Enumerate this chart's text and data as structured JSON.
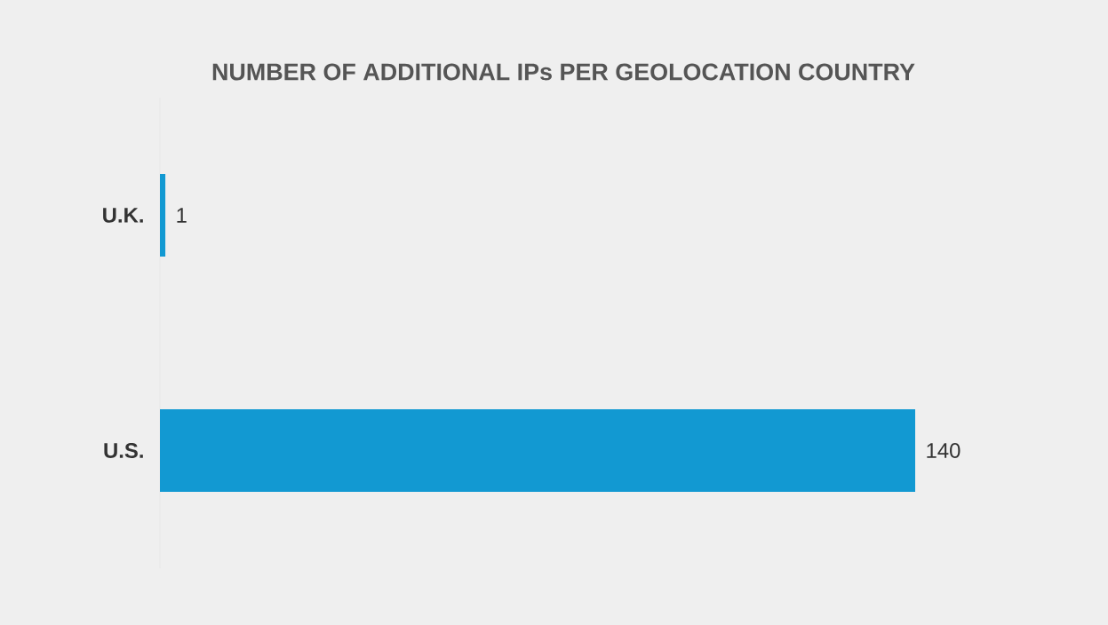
{
  "chart_data": {
    "type": "bar",
    "orientation": "horizontal",
    "title": "NUMBER OF ADDITIONAL IPs PER GEOLOCATION COUNTRY",
    "categories": [
      "U.K.",
      "U.S."
    ],
    "values": [
      1,
      140
    ],
    "color": "#1299d2",
    "data_labels": true
  }
}
